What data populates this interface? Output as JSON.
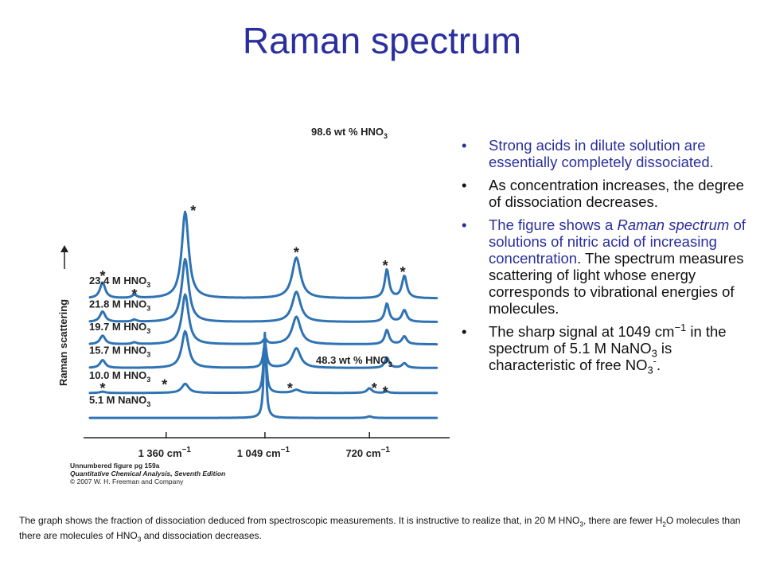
{
  "slide": {
    "title": "Raman spectrum",
    "accent_color": "#2b2f9e",
    "curve_color": "#2f73b3"
  },
  "bullets": [
    {
      "parts": [
        {
          "t": "Strong acids in dilute solution are essentially completely dissociated."
        }
      ],
      "color": "#2b2f9e"
    },
    {
      "parts": [
        {
          "t": "As concentration increases, the degree of dissociation decreases."
        }
      ],
      "color": "#111111"
    },
    {
      "parts": [
        {
          "t": "The figure shows a "
        },
        {
          "t": "Raman spectrum",
          "i": true
        },
        {
          "t": " of solutions of nitric acid of increasing concentration"
        },
        {
          "t": ". The spectrum measures scattering of light whose energy corresponds to vibrational energies of molecules.",
          "black": true
        }
      ],
      "color": "#2b2f9e"
    },
    {
      "parts": [
        {
          "t": "The sharp signal at 1049 cm"
        },
        {
          "t": "−1",
          "sup": true
        },
        {
          "t": " in the spectrum of 5.1 M NaNO"
        },
        {
          "t": "3",
          "sub": true
        },
        {
          "t": " is characteristic of free NO"
        },
        {
          "t": "3",
          "sub": true
        },
        {
          "t": "-",
          "sup": true
        },
        {
          "t": "."
        }
      ],
      "color": "#111111"
    }
  ],
  "footer": {
    "parts": [
      {
        "t": "The graph shows the fraction of dissociation deduced from spectroscopic measurements. It is instructive to realize that, in 20 M HNO"
      },
      {
        "t": "3",
        "sub": true
      },
      {
        "t": ", there are fewer H"
      },
      {
        "t": "2",
        "sub": true
      },
      {
        "t": "O molecules than there are molecules of HNO"
      },
      {
        "t": "3",
        "sub": true
      },
      {
        "t": " and dissociation decreases."
      }
    ]
  },
  "chart_data": {
    "type": "line",
    "title": "",
    "xlabel": "",
    "ylabel": "Raman scattering",
    "x_ticks": [
      {
        "value": 1360,
        "label": "1 360 cm",
        "sup": "−1"
      },
      {
        "value": 1049,
        "label": "1 049 cm",
        "sup": "−1"
      },
      {
        "value": 720,
        "label": "720 cm",
        "sup": "−1"
      }
    ],
    "x_range_cm-1": [
      1620,
      480
    ],
    "series": [
      {
        "name": "23.4 M HNO3",
        "label": {
          "base": "23.4 M HNO",
          "sub": "3"
        },
        "offset": 5.0,
        "peaks": [
          {
            "x": 1560,
            "h": 0.6,
            "w": 10
          },
          {
            "x": 1460,
            "h": 0.12,
            "w": 9
          },
          {
            "x": 1300,
            "h": 3.3,
            "w": 13
          },
          {
            "x": 950,
            "h": 1.55,
            "w": 16
          },
          {
            "x": 665,
            "h": 1.1,
            "w": 8
          },
          {
            "x": 610,
            "h": 0.85,
            "w": 9
          }
        ]
      },
      {
        "name": "21.8 M HNO3",
        "label": {
          "base": "21.8 M HNO",
          "sub": "3"
        },
        "offset": 4.1,
        "peaks": [
          {
            "x": 1560,
            "h": 0.4,
            "w": 10
          },
          {
            "x": 1460,
            "h": 0.08,
            "w": 9
          },
          {
            "x": 1300,
            "h": 2.4,
            "w": 13
          },
          {
            "x": 950,
            "h": 1.15,
            "w": 16
          },
          {
            "x": 665,
            "h": 0.7,
            "w": 8
          },
          {
            "x": 610,
            "h": 0.45,
            "w": 9
          }
        ]
      },
      {
        "name": "19.7 M HNO3",
        "label": {
          "base": "19.7 M HNO",
          "sub": "3"
        },
        "offset": 3.25,
        "peaks": [
          {
            "x": 1560,
            "h": 0.33,
            "w": 10
          },
          {
            "x": 1460,
            "h": 0.07,
            "w": 9
          },
          {
            "x": 1300,
            "h": 1.9,
            "w": 13
          },
          {
            "x": 1049,
            "h": 0.2,
            "w": 7
          },
          {
            "x": 950,
            "h": 1.05,
            "w": 16
          },
          {
            "x": 665,
            "h": 0.55,
            "w": 8
          },
          {
            "x": 610,
            "h": 0.3,
            "w": 9
          }
        ]
      },
      {
        "name": "15.7 M HNO3",
        "label": {
          "base": "15.7 M HNO",
          "sub": "3"
        },
        "offset": 2.35,
        "peaks": [
          {
            "x": 1560,
            "h": 0.3,
            "w": 10
          },
          {
            "x": 1300,
            "h": 1.4,
            "w": 13
          },
          {
            "x": 1049,
            "h": 0.95,
            "w": 6
          },
          {
            "x": 950,
            "h": 0.75,
            "w": 16
          },
          {
            "x": 665,
            "h": 0.4,
            "w": 8
          },
          {
            "x": 610,
            "h": 0.18,
            "w": 9
          }
        ]
      },
      {
        "name": "10.0 M HNO3",
        "label": {
          "base": "10.0 M HNO",
          "sub": "3"
        },
        "offset": 1.4,
        "peaks": [
          {
            "x": 1560,
            "h": 0.05,
            "w": 10
          },
          {
            "x": 1300,
            "h": 0.35,
            "w": 13
          },
          {
            "x": 1049,
            "h": 2.2,
            "w": 5
          },
          {
            "x": 950,
            "h": 0.12,
            "w": 14
          },
          {
            "x": 720,
            "h": 0.18,
            "w": 9
          },
          {
            "x": 665,
            "h": 0.06,
            "w": 7
          }
        ]
      },
      {
        "name": "5.1 M NaNO3",
        "label": {
          "base": "5.1 M NaNO",
          "sub": "3"
        },
        "offset": 0.45,
        "peaks": [
          {
            "x": 1049,
            "h": 3.25,
            "w": 4.5
          },
          {
            "x": 720,
            "h": 0.06,
            "w": 9
          }
        ]
      }
    ],
    "annotations": {
      "wt_labels": [
        {
          "base": "98.6 wt % HNO",
          "sub": "3"
        },
        {
          "base": "48.3 wt % HNO",
          "sub": "3"
        }
      ],
      "star": "*",
      "stars_x_cm-1": [
        1300,
        1560,
        1460,
        950,
        665,
        610,
        1560,
        1365,
        970,
        705,
        670
      ]
    },
    "credit": [
      {
        "t": "Unnumbered figure pg 159a",
        "style": "bold"
      },
      {
        "t": "Quantitative Chemical Analysis, Seventh Edition",
        "style": "italic"
      },
      {
        "t": "© 2007 W. H. Freeman and Company",
        "style": "normal"
      }
    ],
    "grid": false,
    "legend": "inline-left"
  }
}
